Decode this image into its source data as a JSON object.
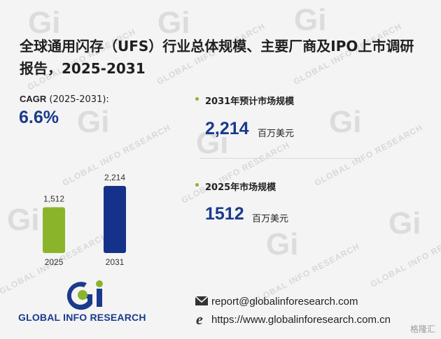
{
  "title": "全球通用闪存（UFS）行业总体规模、主要厂商及IPO上市调研报告，2025-2031",
  "cagr": {
    "label_bold": "CAGR",
    "label_rest": " (2025-2031):",
    "value": "6.6%"
  },
  "stats": [
    {
      "label": "2031年预计市场规模",
      "value": "2,214",
      "unit": "百万美元"
    },
    {
      "label": "2025年市场规模",
      "value": "1512",
      "unit": "百万美元"
    }
  ],
  "chart_data": {
    "type": "bar",
    "categories": [
      "2025",
      "2031"
    ],
    "values": [
      1512,
      2214
    ],
    "data_labels": [
      "1,512",
      "2,214"
    ],
    "colors": [
      "#8ab52a",
      "#15328a"
    ],
    "title": "",
    "xlabel": "",
    "ylabel": ""
  },
  "brand": {
    "logo_text": "GLOBAL INFO RESEARCH",
    "watermark_text": "GLOBAL INFO RESEARCH",
    "accent_green": "#8ab52a",
    "accent_blue": "#1a3a8c"
  },
  "contacts": [
    {
      "icon": "envelope-icon",
      "text": "report@globalinforesearch.com"
    },
    {
      "icon": "browser-e-icon",
      "text": "https://www.globalinforesearch.com.cn"
    }
  ],
  "corner_watermark": "格隆汇"
}
